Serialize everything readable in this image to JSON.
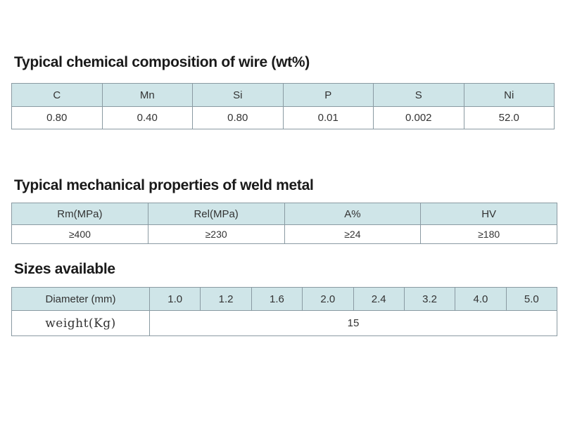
{
  "chemical": {
    "title": "Typical chemical composition of wire (wt%)",
    "headers": [
      "C",
      "Mn",
      "Si",
      "P",
      "S",
      "Ni"
    ],
    "values": [
      "0.80",
      "0.40",
      "0.80",
      "0.01",
      "0.002",
      "52.0"
    ]
  },
  "mechanical": {
    "title": "Typical mechanical properties of weld metal",
    "headers": [
      "Rm(MPa)",
      "Rel(MPa)",
      "A%",
      "HV"
    ],
    "values": [
      "≥400",
      "≥230",
      "≥24",
      "≥180"
    ]
  },
  "sizes": {
    "title": "Sizes available",
    "diameter_label": "Diameter (mm)",
    "diameters": [
      "1.0",
      "1.2",
      "1.6",
      "2.0",
      "2.4",
      "3.2",
      "4.0",
      "5.0"
    ],
    "weight_label": "weight(Kg)",
    "weight_value": "15"
  },
  "colors": {
    "header_fill": "#cfe5e8",
    "border": "#8a9aa2"
  }
}
